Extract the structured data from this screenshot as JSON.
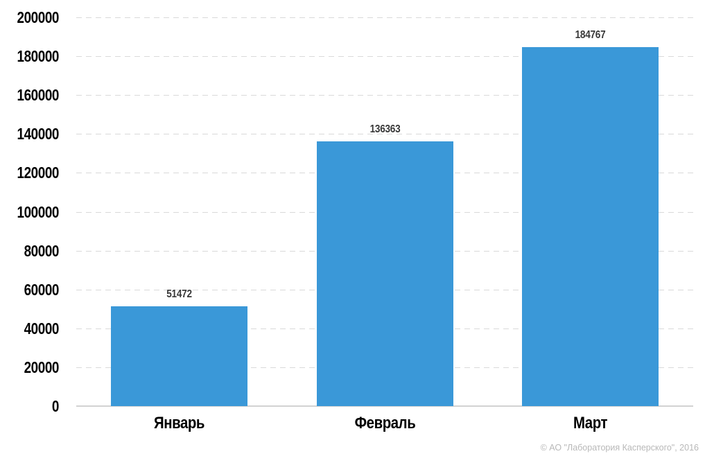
{
  "chart_data": {
    "type": "bar",
    "categories": [
      "Январь",
      "Февраль",
      "Март"
    ],
    "values": [
      51472,
      136363,
      184767
    ],
    "value_labels": [
      "51472",
      "136363",
      "184767"
    ],
    "title": "",
    "xlabel": "",
    "ylabel": "",
    "ylim": [
      0,
      200000
    ],
    "ytick_step": 20000,
    "ytick_labels": [
      "0",
      "20000",
      "40000",
      "60000",
      "80000",
      "100000",
      "120000",
      "140000",
      "160000",
      "180000",
      "200000"
    ],
    "grid": "horizontal-dashed",
    "legend": "none",
    "colors": {
      "bar": "#3A98D8",
      "value_label": "#383838",
      "axis_label": "#000000",
      "gridline": "#d9d9d9",
      "baseline": "#d2d2d2",
      "background": "#ffffff"
    }
  },
  "footer": {
    "copyright": "© АО \"Лаборатория Касперского\", 2016",
    "color": "#b8b8b8"
  }
}
